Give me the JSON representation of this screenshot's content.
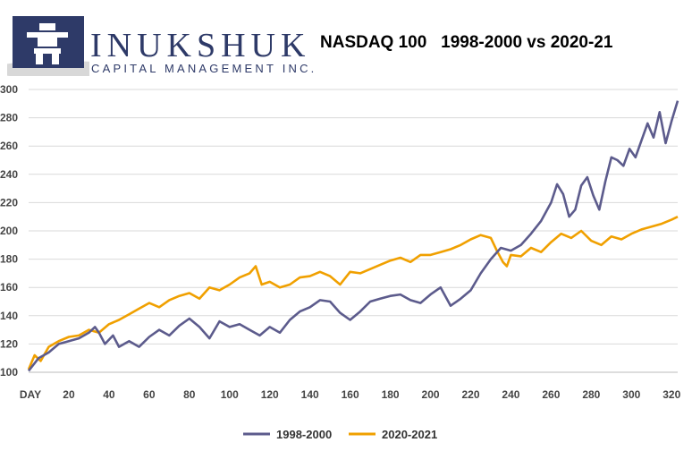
{
  "brand": {
    "name": "INUKSHUK",
    "tagline": "CAPITAL MANAGEMENT INC.",
    "icon": "inukshuk-icon",
    "color": "#2e3a68",
    "swoosh_color": "#d8d8d8"
  },
  "chart_data": {
    "type": "line",
    "title": "NASDAQ 100   1998-2000 vs 2020-21",
    "xlabel": "",
    "ylabel": "",
    "x_first_tick_label": "DAY",
    "xlim": [
      0,
      323
    ],
    "ylim": [
      100,
      300
    ],
    "xticks": [
      20,
      40,
      60,
      80,
      100,
      120,
      140,
      160,
      180,
      200,
      220,
      240,
      260,
      280,
      300,
      320
    ],
    "yticks": [
      100,
      120,
      140,
      160,
      180,
      200,
      220,
      240,
      260,
      280,
      300
    ],
    "grid": "horizontal",
    "legend_position": "bottom",
    "series": [
      {
        "name": "1998-2000",
        "color": "#5c5b8c",
        "x": [
          0,
          5,
          10,
          15,
          20,
          25,
          30,
          33,
          35,
          38,
          42,
          45,
          50,
          55,
          60,
          65,
          70,
          75,
          80,
          85,
          90,
          95,
          100,
          105,
          110,
          115,
          120,
          125,
          130,
          135,
          140,
          145,
          150,
          155,
          160,
          165,
          170,
          175,
          180,
          185,
          190,
          195,
          200,
          205,
          210,
          215,
          220,
          225,
          230,
          235,
          240,
          245,
          250,
          255,
          260,
          263,
          266,
          269,
          272,
          275,
          278,
          281,
          284,
          287,
          290,
          293,
          296,
          299,
          302,
          305,
          308,
          311,
          314,
          317,
          320,
          323
        ],
        "y": [
          101,
          110,
          114,
          120,
          122,
          124,
          128,
          132,
          128,
          120,
          126,
          118,
          122,
          118,
          125,
          130,
          126,
          133,
          138,
          132,
          124,
          136,
          132,
          134,
          130,
          126,
          132,
          128,
          137,
          143,
          146,
          151,
          150,
          142,
          137,
          143,
          150,
          152,
          154,
          155,
          151,
          149,
          155,
          160,
          147,
          152,
          158,
          170,
          180,
          188,
          186,
          190,
          198,
          207,
          220,
          233,
          226,
          210,
          215,
          232,
          238,
          225,
          215,
          235,
          252,
          250,
          246,
          258,
          252,
          264,
          276,
          266,
          284,
          262,
          278,
          292
        ]
      },
      {
        "name": "2020-2021",
        "color": "#f0a000",
        "x": [
          0,
          3,
          6,
          10,
          15,
          20,
          25,
          30,
          35,
          40,
          45,
          50,
          55,
          60,
          65,
          70,
          75,
          80,
          85,
          90,
          95,
          100,
          105,
          110,
          113,
          116,
          120,
          125,
          130,
          135,
          140,
          145,
          150,
          155,
          160,
          165,
          170,
          175,
          180,
          185,
          190,
          195,
          200,
          205,
          210,
          215,
          220,
          225,
          230,
          233,
          236,
          238,
          240,
          245,
          250,
          255,
          260,
          265,
          270,
          275,
          280,
          285,
          290,
          295,
          300,
          305,
          310,
          315,
          320,
          323
        ],
        "y": [
          102,
          112,
          108,
          118,
          122,
          125,
          126,
          130,
          128,
          134,
          137,
          141,
          145,
          149,
          146,
          151,
          154,
          156,
          152,
          160,
          158,
          162,
          167,
          170,
          175,
          162,
          164,
          160,
          162,
          167,
          168,
          171,
          168,
          162,
          171,
          170,
          173,
          176,
          179,
          181,
          178,
          183,
          183,
          185,
          187,
          190,
          194,
          197,
          195,
          186,
          178,
          175,
          183,
          182,
          188,
          185,
          192,
          198,
          195,
          200,
          193,
          190,
          196,
          194,
          198,
          201,
          203,
          205,
          208,
          210
        ]
      }
    ]
  }
}
